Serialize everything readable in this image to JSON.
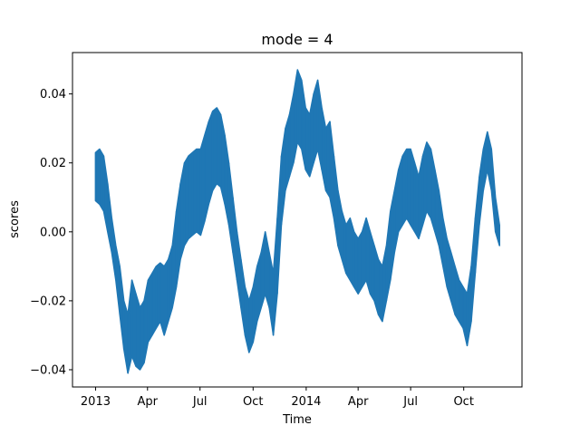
{
  "chart_data": {
    "type": "line",
    "title": "mode = 4",
    "xlabel": "Time",
    "ylabel": "scores",
    "grid": false,
    "legend": "none",
    "xlim": [
      "2012-11-22",
      "2015-01-10"
    ],
    "ylim": [
      -0.045,
      0.052
    ],
    "x_ticks": [
      {
        "date": "2013-01-01",
        "label": "2013"
      },
      {
        "date": "2013-04-01",
        "label": "Apr"
      },
      {
        "date": "2013-07-01",
        "label": "Jul"
      },
      {
        "date": "2013-10-01",
        "label": "Oct"
      },
      {
        "date": "2014-01-01",
        "label": "2014"
      },
      {
        "date": "2014-04-01",
        "label": "Apr"
      },
      {
        "date": "2014-07-01",
        "label": "Jul"
      },
      {
        "date": "2014-10-01",
        "label": "Oct"
      }
    ],
    "y_ticks": [
      {
        "value": -0.04,
        "label": "−0.04"
      },
      {
        "value": -0.02,
        "label": "−0.02"
      },
      {
        "value": 0.0,
        "label": "0.00"
      },
      {
        "value": 0.02,
        "label": "0.02"
      },
      {
        "value": 0.04,
        "label": "0.04"
      }
    ],
    "series": [
      {
        "color": "#1f77b4",
        "points": [
          {
            "date": "2013-01-01",
            "min": 0.009,
            "max": 0.023
          },
          {
            "date": "2013-01-08",
            "min": 0.008,
            "max": 0.024
          },
          {
            "date": "2013-01-15",
            "min": 0.006,
            "max": 0.022
          },
          {
            "date": "2013-01-22",
            "min": 0.0,
            "max": 0.014
          },
          {
            "date": "2013-01-29",
            "min": -0.006,
            "max": 0.004
          },
          {
            "date": "2013-02-05",
            "min": -0.014,
            "max": -0.004
          },
          {
            "date": "2013-02-12",
            "min": -0.024,
            "max": -0.01
          },
          {
            "date": "2013-02-19",
            "min": -0.034,
            "max": -0.02
          },
          {
            "date": "2013-02-26",
            "min": -0.041,
            "max": -0.024
          },
          {
            "date": "2013-03-05",
            "min": -0.036,
            "max": -0.014
          },
          {
            "date": "2013-03-12",
            "min": -0.039,
            "max": -0.018
          },
          {
            "date": "2013-03-19",
            "min": -0.04,
            "max": -0.022
          },
          {
            "date": "2013-03-26",
            "min": -0.038,
            "max": -0.02
          },
          {
            "date": "2013-04-02",
            "min": -0.032,
            "max": -0.014
          },
          {
            "date": "2013-04-09",
            "min": -0.03,
            "max": -0.012
          },
          {
            "date": "2013-04-16",
            "min": -0.028,
            "max": -0.01
          },
          {
            "date": "2013-04-23",
            "min": -0.026,
            "max": -0.009
          },
          {
            "date": "2013-04-30",
            "min": -0.03,
            "max": -0.01
          },
          {
            "date": "2013-05-07",
            "min": -0.026,
            "max": -0.008
          },
          {
            "date": "2013-05-14",
            "min": -0.022,
            "max": -0.004
          },
          {
            "date": "2013-05-21",
            "min": -0.016,
            "max": 0.006
          },
          {
            "date": "2013-05-28",
            "min": -0.008,
            "max": 0.014
          },
          {
            "date": "2013-06-04",
            "min": -0.004,
            "max": 0.02
          },
          {
            "date": "2013-06-11",
            "min": -0.002,
            "max": 0.022
          },
          {
            "date": "2013-06-18",
            "min": -0.001,
            "max": 0.023
          },
          {
            "date": "2013-06-25",
            "min": 0.0,
            "max": 0.024
          },
          {
            "date": "2013-07-02",
            "min": -0.001,
            "max": 0.024
          },
          {
            "date": "2013-07-09",
            "min": 0.003,
            "max": 0.028
          },
          {
            "date": "2013-07-16",
            "min": 0.008,
            "max": 0.032
          },
          {
            "date": "2013-07-23",
            "min": 0.012,
            "max": 0.035
          },
          {
            "date": "2013-07-30",
            "min": 0.014,
            "max": 0.036
          },
          {
            "date": "2013-08-06",
            "min": 0.013,
            "max": 0.034
          },
          {
            "date": "2013-08-13",
            "min": 0.008,
            "max": 0.028
          },
          {
            "date": "2013-08-20",
            "min": 0.002,
            "max": 0.02
          },
          {
            "date": "2013-08-27",
            "min": -0.006,
            "max": 0.01
          },
          {
            "date": "2013-09-03",
            "min": -0.014,
            "max": 0.0
          },
          {
            "date": "2013-09-10",
            "min": -0.022,
            "max": -0.008
          },
          {
            "date": "2013-09-17",
            "min": -0.03,
            "max": -0.016
          },
          {
            "date": "2013-09-24",
            "min": -0.035,
            "max": -0.02
          },
          {
            "date": "2013-10-01",
            "min": -0.032,
            "max": -0.016
          },
          {
            "date": "2013-10-08",
            "min": -0.026,
            "max": -0.01
          },
          {
            "date": "2013-10-15",
            "min": -0.022,
            "max": -0.006
          },
          {
            "date": "2013-10-22",
            "min": -0.018,
            "max": 0.0
          },
          {
            "date": "2013-10-29",
            "min": -0.022,
            "max": -0.006
          },
          {
            "date": "2013-11-05",
            "min": -0.03,
            "max": -0.012
          },
          {
            "date": "2013-11-12",
            "min": -0.018,
            "max": 0.004
          },
          {
            "date": "2013-11-19",
            "min": 0.002,
            "max": 0.022
          },
          {
            "date": "2013-11-26",
            "min": 0.012,
            "max": 0.03
          },
          {
            "date": "2013-12-03",
            "min": 0.016,
            "max": 0.034
          },
          {
            "date": "2013-12-10",
            "min": 0.02,
            "max": 0.04
          },
          {
            "date": "2013-12-17",
            "min": 0.026,
            "max": 0.047
          },
          {
            "date": "2013-12-24",
            "min": 0.024,
            "max": 0.044
          },
          {
            "date": "2013-12-31",
            "min": 0.018,
            "max": 0.036
          },
          {
            "date": "2014-01-07",
            "min": 0.016,
            "max": 0.034
          },
          {
            "date": "2014-01-14",
            "min": 0.02,
            "max": 0.04
          },
          {
            "date": "2014-01-21",
            "min": 0.024,
            "max": 0.044
          },
          {
            "date": "2014-01-28",
            "min": 0.018,
            "max": 0.036
          },
          {
            "date": "2014-02-04",
            "min": 0.012,
            "max": 0.03
          },
          {
            "date": "2014-02-11",
            "min": 0.01,
            "max": 0.032
          },
          {
            "date": "2014-02-18",
            "min": 0.004,
            "max": 0.022
          },
          {
            "date": "2014-02-25",
            "min": -0.004,
            "max": 0.012
          },
          {
            "date": "2014-03-04",
            "min": -0.008,
            "max": 0.006
          },
          {
            "date": "2014-03-11",
            "min": -0.012,
            "max": 0.002
          },
          {
            "date": "2014-03-18",
            "min": -0.014,
            "max": 0.004
          },
          {
            "date": "2014-03-25",
            "min": -0.016,
            "max": 0.0
          },
          {
            "date": "2014-04-01",
            "min": -0.018,
            "max": -0.002
          },
          {
            "date": "2014-04-08",
            "min": -0.016,
            "max": 0.0
          },
          {
            "date": "2014-04-15",
            "min": -0.014,
            "max": 0.004
          },
          {
            "date": "2014-04-22",
            "min": -0.018,
            "max": 0.0
          },
          {
            "date": "2014-04-29",
            "min": -0.02,
            "max": -0.004
          },
          {
            "date": "2014-05-06",
            "min": -0.024,
            "max": -0.008
          },
          {
            "date": "2014-05-13",
            "min": -0.026,
            "max": -0.01
          },
          {
            "date": "2014-05-20",
            "min": -0.02,
            "max": -0.004
          },
          {
            "date": "2014-05-27",
            "min": -0.014,
            "max": 0.006
          },
          {
            "date": "2014-06-03",
            "min": -0.006,
            "max": 0.012
          },
          {
            "date": "2014-06-10",
            "min": 0.0,
            "max": 0.018
          },
          {
            "date": "2014-06-17",
            "min": 0.002,
            "max": 0.022
          },
          {
            "date": "2014-06-24",
            "min": 0.004,
            "max": 0.024
          },
          {
            "date": "2014-07-01",
            "min": 0.002,
            "max": 0.024
          },
          {
            "date": "2014-07-08",
            "min": 0.0,
            "max": 0.02
          },
          {
            "date": "2014-07-15",
            "min": -0.002,
            "max": 0.016
          },
          {
            "date": "2014-07-22",
            "min": 0.002,
            "max": 0.022
          },
          {
            "date": "2014-07-29",
            "min": 0.006,
            "max": 0.026
          },
          {
            "date": "2014-08-05",
            "min": 0.004,
            "max": 0.024
          },
          {
            "date": "2014-08-12",
            "min": 0.0,
            "max": 0.018
          },
          {
            "date": "2014-08-19",
            "min": -0.004,
            "max": 0.012
          },
          {
            "date": "2014-08-26",
            "min": -0.01,
            "max": 0.004
          },
          {
            "date": "2014-09-02",
            "min": -0.016,
            "max": -0.002
          },
          {
            "date": "2014-09-09",
            "min": -0.02,
            "max": -0.006
          },
          {
            "date": "2014-09-16",
            "min": -0.024,
            "max": -0.01
          },
          {
            "date": "2014-09-23",
            "min": -0.026,
            "max": -0.014
          },
          {
            "date": "2014-09-30",
            "min": -0.028,
            "max": -0.016
          },
          {
            "date": "2014-10-07",
            "min": -0.033,
            "max": -0.018
          },
          {
            "date": "2014-10-14",
            "min": -0.026,
            "max": -0.01
          },
          {
            "date": "2014-10-21",
            "min": -0.012,
            "max": 0.004
          },
          {
            "date": "2014-10-28",
            "min": 0.002,
            "max": 0.016
          },
          {
            "date": "2014-11-04",
            "min": 0.012,
            "max": 0.024
          },
          {
            "date": "2014-11-11",
            "min": 0.018,
            "max": 0.029
          },
          {
            "date": "2014-11-18",
            "min": 0.012,
            "max": 0.024
          },
          {
            "date": "2014-11-25",
            "min": 0.0,
            "max": 0.01
          },
          {
            "date": "2014-12-02",
            "min": -0.004,
            "max": 0.002
          }
        ]
      }
    ]
  }
}
